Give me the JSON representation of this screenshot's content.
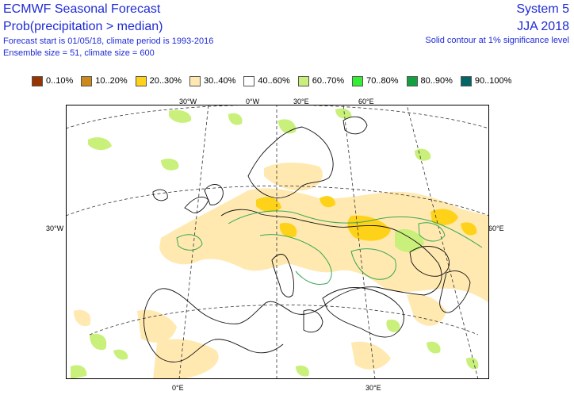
{
  "header": {
    "title": "ECMWF Seasonal Forecast",
    "subtitle": "Prob(precipitation > median)",
    "forecast_info": "Forecast start is 01/05/18, climate period is 1993-2016",
    "ensemble_info": "Ensemble size = 51, climate size = 600",
    "system": "System 5",
    "season": "JJA 2018",
    "significance": "Solid contour at 1% significance level"
  },
  "legend": [
    {
      "label": "0..10%",
      "color": "#993300"
    },
    {
      "label": "10..20%",
      "color": "#cc8a1a"
    },
    {
      "label": "20..30%",
      "color": "#ffd21a"
    },
    {
      "label": "30..40%",
      "color": "#ffe9b0"
    },
    {
      "label": "40..60%",
      "color": "#ffffff"
    },
    {
      "label": "60..70%",
      "color": "#c8f07a"
    },
    {
      "label": "70..80%",
      "color": "#33ee33"
    },
    {
      "label": "80..90%",
      "color": "#13a040"
    },
    {
      "label": "90..100%",
      "color": "#006666"
    }
  ],
  "axis_labels": {
    "top_30w": "30°W",
    "top_0e": "0°W",
    "top_30e": "30°E",
    "top_60e": "60°E",
    "left_30w": "30°W",
    "right_60e": "60°E",
    "bottom_0e": "0°E",
    "bottom_30e": "30°E"
  }
}
